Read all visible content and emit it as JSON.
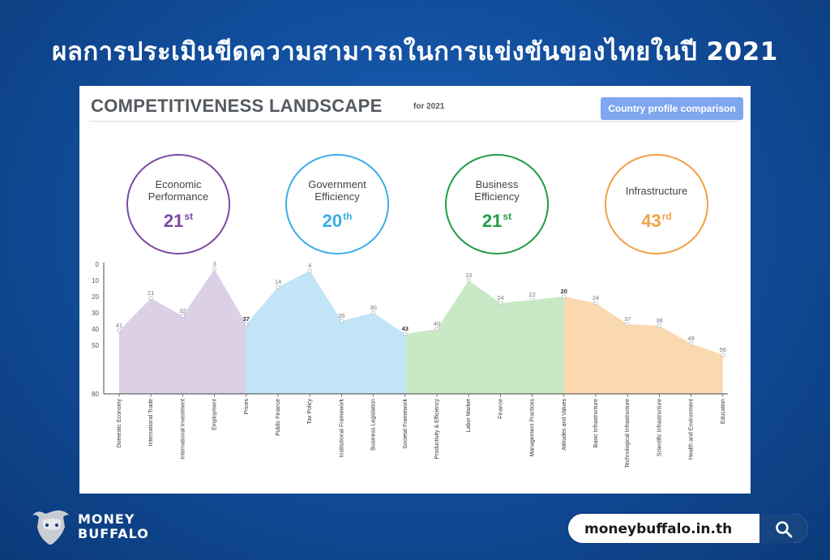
{
  "headline": "ผลการประเมินขีดความสามารถในการแข่งขันของไทยในปี 2021",
  "panel": {
    "title": "COMPETITIVENESS LANDSCAPE",
    "subtitle": "for 2021",
    "button_label": "Country profile comparison"
  },
  "factors": [
    {
      "label": "Economic\nPerformance",
      "rank": "21",
      "suffix": "st",
      "color": "#7a4aa3"
    },
    {
      "label": "Government\nEfficiency",
      "rank": "20",
      "suffix": "th",
      "color": "#3aaee6"
    },
    {
      "label": "Business\nEfficiency",
      "rank": "21",
      "suffix": "st",
      "color": "#1f9b46"
    },
    {
      "label": "Infrastructure",
      "rank": "43",
      "suffix": "rd",
      "color": "#f0a044"
    }
  ],
  "chart_data": {
    "type": "area",
    "ylim": [
      80,
      0
    ],
    "yticks": [
      0,
      10,
      20,
      30,
      40,
      50,
      80
    ],
    "categories": [
      "Domestic Economy",
      "International Trade",
      "International Investment",
      "Employment",
      "Prices",
      "Public Finance",
      "Tax Policy",
      "Institutional Framework",
      "Business Legislation",
      "Societal Framework",
      "Productivity & Efficiency",
      "Labor Market",
      "Finance",
      "Management Practices",
      "Attitudes and Values",
      "Basic Infrastructure",
      "Technological Infrastructure",
      "Scientific Infrastructure",
      "Health and Environment",
      "Education"
    ],
    "values": [
      41,
      21,
      32,
      3,
      37,
      14,
      4,
      35,
      30,
      43,
      40,
      10,
      24,
      22,
      20,
      24,
      37,
      38,
      49,
      56
    ],
    "groups": [
      {
        "start": 0,
        "end": 4,
        "color": "#dcd0e6"
      },
      {
        "start": 4,
        "end": 9,
        "color": "#c2e4f7"
      },
      {
        "start": 9,
        "end": 14,
        "color": "#c8e8c6"
      },
      {
        "start": 14,
        "end": 19,
        "color": "#fbd9b0"
      }
    ],
    "bold_labels": [
      4,
      9,
      14
    ]
  },
  "brand": {
    "line1": "MONEY",
    "line2": "BUFFALO"
  },
  "url": "moneybuffalo.in.th"
}
